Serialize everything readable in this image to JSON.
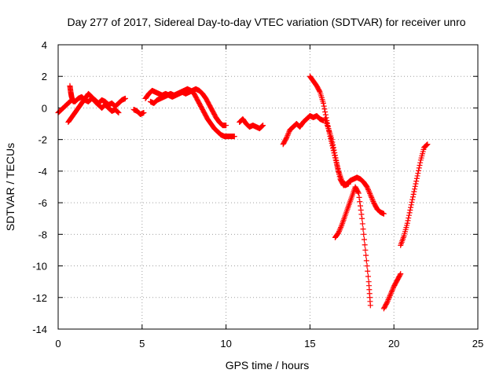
{
  "chart_data": {
    "type": "scatter",
    "title": "Day 277 of 2017, Sidereal Day-to-day VTEC variation (SDTVAR) for receiver unro",
    "xlabel": "GPS time / hours",
    "ylabel": "SDTVAR / TECUs",
    "xlim": [
      0,
      25
    ],
    "ylim": [
      -14,
      4
    ],
    "xticks": [
      0,
      5,
      10,
      15,
      20,
      25
    ],
    "yticks": [
      -14,
      -12,
      -10,
      -8,
      -6,
      -4,
      -2,
      0,
      2,
      4
    ],
    "grid": true,
    "legend": "none",
    "marker": "plus",
    "color": "#ff0000",
    "series": [
      {
        "segments": [
          [
            [
              0.0,
              -0.3
            ],
            [
              0.2,
              -0.1
            ],
            [
              0.4,
              0.1
            ],
            [
              0.6,
              0.3
            ],
            [
              0.8,
              0.5
            ],
            [
              1.0,
              0.4
            ],
            [
              1.2,
              0.6
            ],
            [
              1.4,
              0.7
            ],
            [
              1.6,
              0.5
            ],
            [
              1.8,
              0.4
            ],
            [
              2.0,
              0.6
            ],
            [
              2.2,
              0.5
            ],
            [
              2.4,
              0.3
            ],
            [
              2.6,
              0.5
            ],
            [
              2.8,
              0.4
            ],
            [
              3.0,
              0.2
            ],
            [
              3.2,
              0.3
            ],
            [
              3.4,
              0.1
            ],
            [
              3.6,
              0.3
            ],
            [
              3.8,
              0.5
            ],
            [
              4.0,
              0.6
            ]
          ],
          [
            [
              0.6,
              -0.9
            ],
            [
              0.8,
              -0.6
            ],
            [
              1.0,
              -0.3
            ],
            [
              1.2,
              0.0
            ],
            [
              1.4,
              0.3
            ],
            [
              1.6,
              0.6
            ],
            [
              1.8,
              0.9
            ],
            [
              2.0,
              0.7
            ],
            [
              2.2,
              0.4
            ],
            [
              2.4,
              0.2
            ],
            [
              2.6,
              0.0
            ],
            [
              2.8,
              0.2
            ],
            [
              3.0,
              0.0
            ],
            [
              3.2,
              -0.2
            ],
            [
              3.4,
              -0.1
            ],
            [
              3.6,
              -0.3
            ]
          ],
          [
            [
              0.7,
              1.4
            ],
            [
              0.75,
              1.0
            ],
            [
              0.8,
              0.7
            ],
            [
              0.9,
              0.4
            ]
          ],
          [
            [
              4.5,
              -0.1
            ],
            [
              4.7,
              -0.2
            ],
            [
              4.9,
              -0.4
            ],
            [
              5.1,
              -0.3
            ]
          ],
          [
            [
              5.2,
              0.6
            ],
            [
              5.4,
              0.9
            ],
            [
              5.6,
              1.1
            ],
            [
              5.8,
              1.0
            ],
            [
              6.0,
              0.9
            ],
            [
              6.2,
              0.8
            ],
            [
              6.4,
              0.9
            ],
            [
              6.6,
              0.8
            ],
            [
              6.8,
              0.7
            ],
            [
              7.0,
              0.8
            ],
            [
              7.2,
              0.9
            ],
            [
              7.4,
              1.0
            ],
            [
              7.6,
              0.9
            ],
            [
              7.8,
              1.0
            ],
            [
              8.0,
              1.1
            ],
            [
              8.2,
              1.2
            ],
            [
              8.4,
              1.1
            ],
            [
              8.6,
              0.9
            ],
            [
              8.8,
              0.6
            ],
            [
              9.0,
              0.2
            ],
            [
              9.2,
              -0.2
            ],
            [
              9.4,
              -0.6
            ],
            [
              9.6,
              -0.9
            ],
            [
              9.8,
              -1.1
            ],
            [
              10.0,
              -1.1
            ]
          ],
          [
            [
              5.5,
              0.4
            ],
            [
              5.7,
              0.3
            ],
            [
              5.9,
              0.5
            ],
            [
              6.1,
              0.6
            ],
            [
              6.3,
              0.7
            ],
            [
              6.5,
              0.8
            ],
            [
              6.7,
              0.9
            ],
            [
              6.9,
              0.8
            ],
            [
              7.1,
              0.9
            ],
            [
              7.3,
              1.0
            ],
            [
              7.5,
              1.1
            ],
            [
              7.7,
              1.2
            ],
            [
              7.9,
              1.1
            ],
            [
              8.1,
              0.9
            ],
            [
              8.3,
              0.5
            ],
            [
              8.5,
              0.1
            ],
            [
              8.7,
              -0.3
            ],
            [
              8.9,
              -0.7
            ],
            [
              9.1,
              -1.0
            ],
            [
              9.3,
              -1.3
            ],
            [
              9.5,
              -1.5
            ],
            [
              9.7,
              -1.7
            ],
            [
              9.9,
              -1.8
            ],
            [
              10.1,
              -1.8
            ],
            [
              10.3,
              -1.8
            ],
            [
              10.5,
              -1.8
            ]
          ],
          [
            [
              10.8,
              -0.9
            ],
            [
              11.0,
              -0.7
            ],
            [
              11.2,
              -1.0
            ],
            [
              11.4,
              -1.2
            ],
            [
              11.6,
              -1.1
            ],
            [
              11.8,
              -1.2
            ],
            [
              12.0,
              -1.3
            ],
            [
              12.2,
              -1.1
            ]
          ],
          [
            [
              13.4,
              -2.3
            ],
            [
              13.6,
              -1.9
            ],
            [
              13.8,
              -1.4
            ],
            [
              14.0,
              -1.2
            ],
            [
              14.2,
              -1.0
            ],
            [
              14.4,
              -1.2
            ],
            [
              14.6,
              -0.9
            ],
            [
              14.8,
              -0.7
            ],
            [
              15.0,
              -0.5
            ],
            [
              15.2,
              -0.6
            ],
            [
              15.4,
              -0.5
            ],
            [
              15.6,
              -0.7
            ],
            [
              15.8,
              -0.8
            ]
          ],
          [
            [
              15.0,
              2.0
            ],
            [
              15.2,
              1.7
            ],
            [
              15.4,
              1.4
            ],
            [
              15.6,
              1.0
            ],
            [
              15.8,
              0.3
            ],
            [
              16.0,
              -0.8
            ],
            [
              16.2,
              -1.8
            ],
            [
              16.4,
              -2.7
            ],
            [
              16.6,
              -3.6
            ],
            [
              16.8,
              -4.5
            ],
            [
              17.0,
              -4.9
            ],
            [
              17.2,
              -4.8
            ],
            [
              17.4,
              -4.6
            ],
            [
              17.6,
              -4.5
            ],
            [
              17.8,
              -4.4
            ],
            [
              18.0,
              -4.5
            ],
            [
              18.2,
              -4.7
            ],
            [
              18.4,
              -5.0
            ],
            [
              18.6,
              -5.5
            ],
            [
              18.8,
              -6.0
            ],
            [
              19.0,
              -6.4
            ],
            [
              19.2,
              -6.6
            ],
            [
              19.4,
              -6.7
            ]
          ],
          [
            [
              15.9,
              -0.7
            ],
            [
              16.1,
              -1.3
            ],
            [
              16.3,
              -2.0
            ],
            [
              16.5,
              -3.0
            ],
            [
              16.7,
              -4.0
            ],
            [
              16.9,
              -4.6
            ],
            [
              17.1,
              -4.9
            ],
            [
              17.3,
              -4.8
            ]
          ],
          [
            [
              16.5,
              -8.2
            ],
            [
              16.7,
              -7.9
            ],
            [
              16.9,
              -7.4
            ],
            [
              17.1,
              -6.8
            ],
            [
              17.3,
              -6.2
            ],
            [
              17.5,
              -5.6
            ],
            [
              17.7,
              -5.0
            ],
            [
              17.9,
              -5.4
            ],
            [
              18.1,
              -7.0
            ],
            [
              18.3,
              -9.0
            ],
            [
              18.5,
              -11.0
            ],
            [
              18.6,
              -12.5
            ]
          ],
          [
            [
              19.4,
              -12.7
            ],
            [
              19.6,
              -12.3
            ],
            [
              19.8,
              -11.8
            ],
            [
              20.0,
              -11.3
            ],
            [
              20.2,
              -10.9
            ],
            [
              20.4,
              -10.5
            ]
          ],
          [
            [
              20.4,
              -8.7
            ],
            [
              20.6,
              -8.1
            ],
            [
              20.8,
              -7.3
            ],
            [
              21.0,
              -6.3
            ],
            [
              21.2,
              -5.3
            ],
            [
              21.4,
              -4.3
            ],
            [
              21.6,
              -3.3
            ],
            [
              21.8,
              -2.5
            ],
            [
              22.0,
              -2.3
            ]
          ]
        ]
      }
    ]
  }
}
